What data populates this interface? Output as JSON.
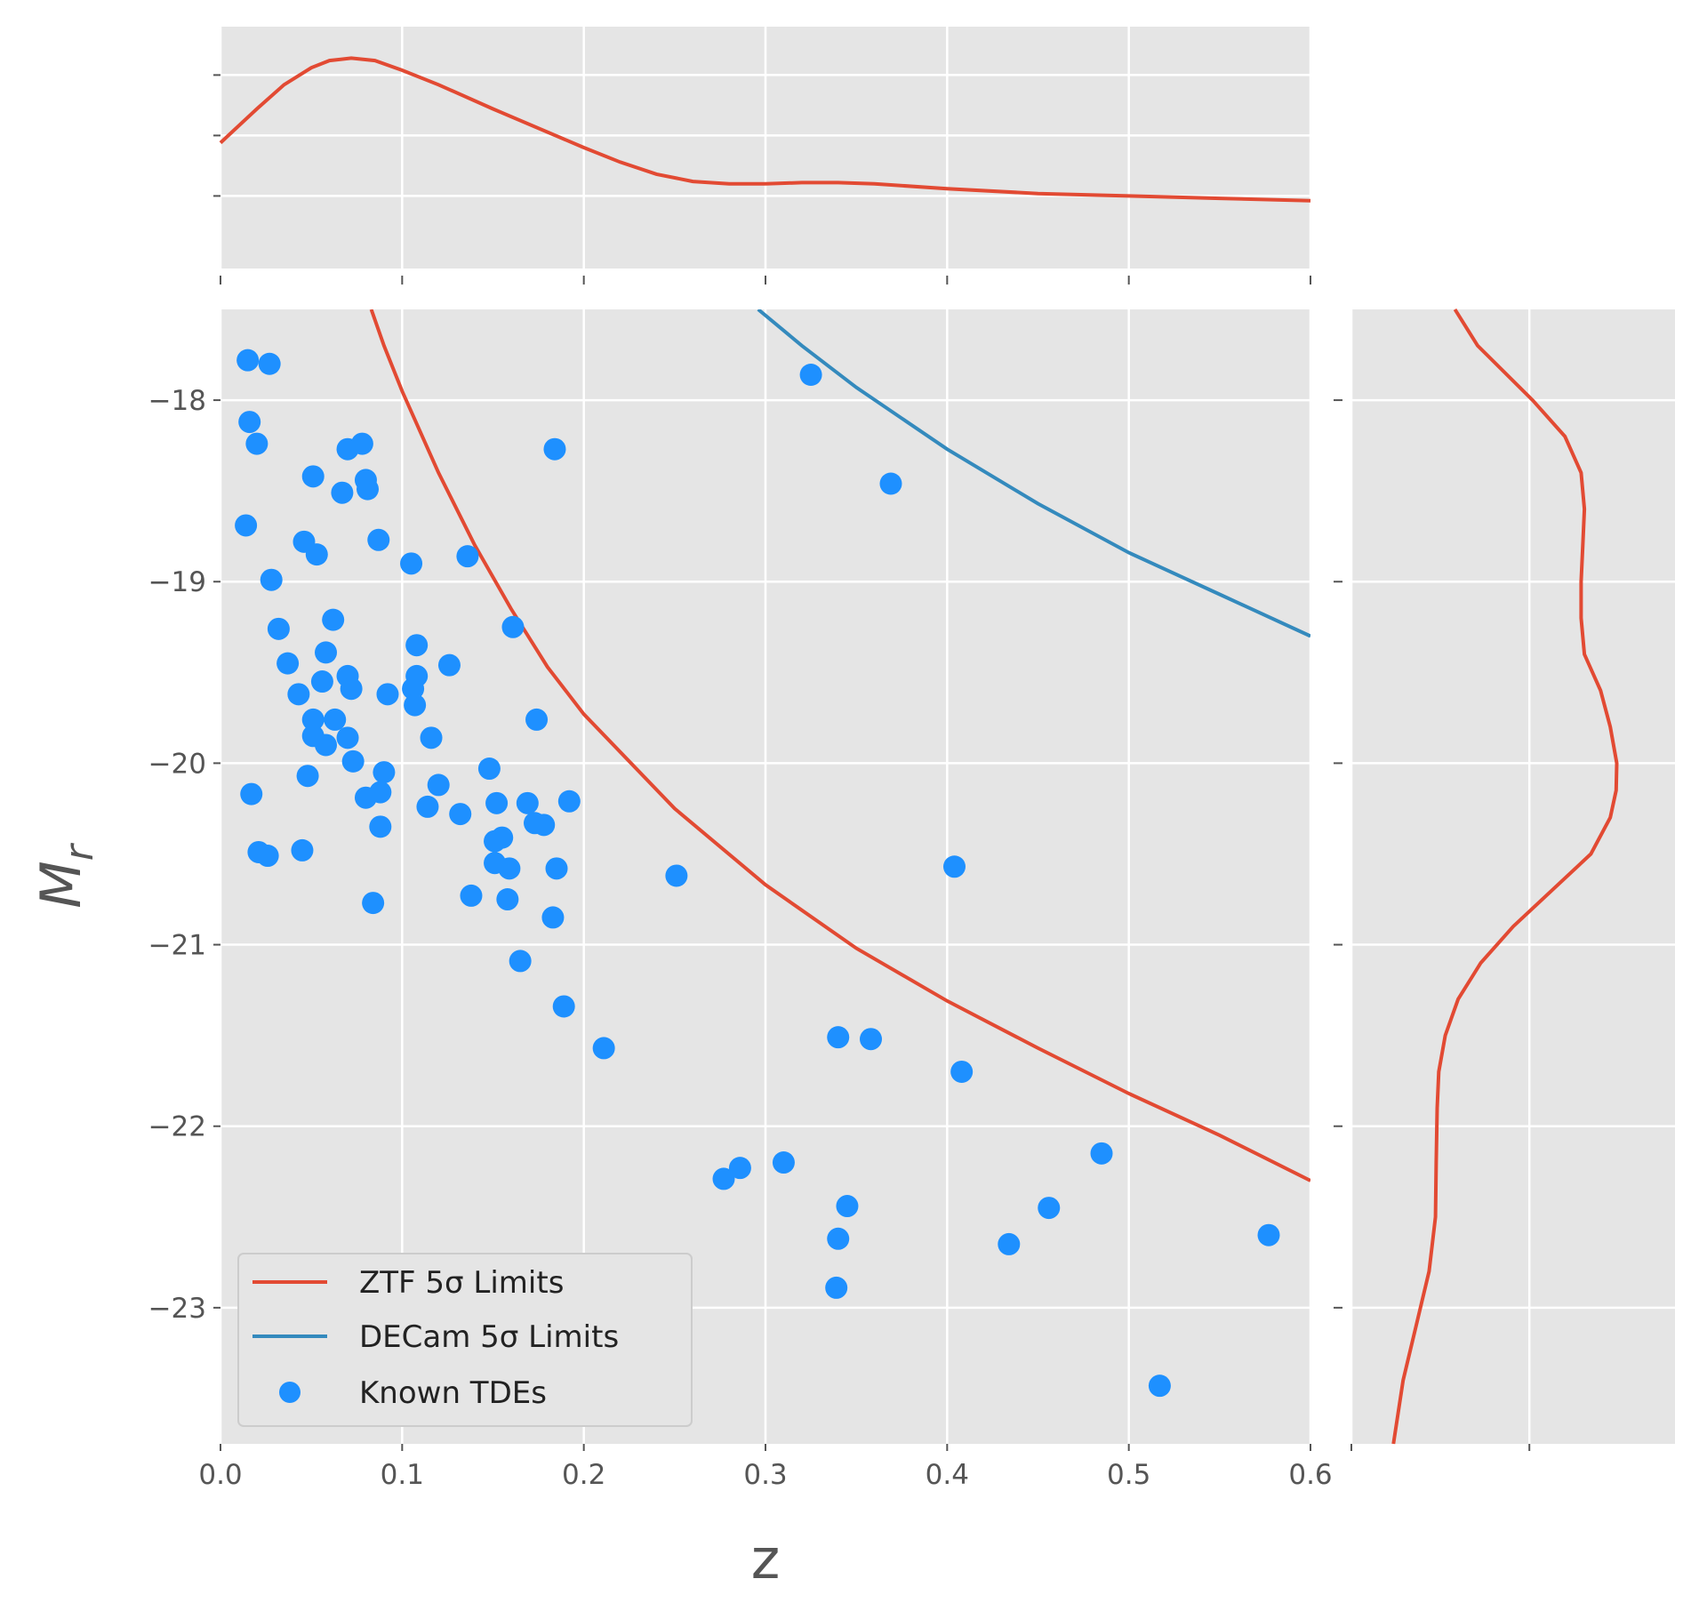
{
  "chart_data": {
    "type": "scatter",
    "xlabel": "z",
    "ylabel_base": "M",
    "ylabel_sub": "r",
    "xlim": [
      0.0,
      0.6
    ],
    "ylim": [
      -17.5,
      -23.75
    ],
    "y_inverted": true,
    "grid": true,
    "xticks": [
      0.0,
      0.1,
      0.2,
      0.3,
      0.4,
      0.5,
      0.6
    ],
    "xtick_labels": [
      "0.0",
      "0.1",
      "0.2",
      "0.3",
      "0.4",
      "0.5",
      "0.6"
    ],
    "yticks": [
      -18,
      -19,
      -20,
      -21,
      -22,
      -23
    ],
    "ytick_labels": [
      "−18",
      "−19",
      "−20",
      "−21",
      "−22",
      "−23"
    ],
    "legend": {
      "placement": "lower-left",
      "entries": [
        {
          "label": "ZTF 5σ Limits",
          "kind": "line",
          "color": "#E24A33"
        },
        {
          "label": "DECam 5σ Limits",
          "kind": "line",
          "color": "#348ABD"
        },
        {
          "label": "Known TDEs",
          "kind": "marker",
          "color": "#1E90FF"
        }
      ]
    },
    "series": [
      {
        "name": "ZTF 5σ Limits",
        "kind": "line",
        "color": "#E24A33",
        "points": [
          [
            0.083,
            -17.5
          ],
          [
            0.09,
            -17.7
          ],
          [
            0.1,
            -17.95
          ],
          [
            0.12,
            -18.4
          ],
          [
            0.14,
            -18.8
          ],
          [
            0.16,
            -19.15
          ],
          [
            0.18,
            -19.47
          ],
          [
            0.2,
            -19.73
          ],
          [
            0.25,
            -20.25
          ],
          [
            0.3,
            -20.67
          ],
          [
            0.35,
            -21.02
          ],
          [
            0.4,
            -21.31
          ],
          [
            0.45,
            -21.57
          ],
          [
            0.5,
            -21.82
          ],
          [
            0.55,
            -22.05
          ],
          [
            0.6,
            -22.3
          ]
        ]
      },
      {
        "name": "DECam 5σ Limits",
        "kind": "line",
        "color": "#348ABD",
        "points": [
          [
            0.296,
            -17.5
          ],
          [
            0.32,
            -17.7
          ],
          [
            0.35,
            -17.93
          ],
          [
            0.4,
            -18.27
          ],
          [
            0.45,
            -18.57
          ],
          [
            0.5,
            -18.84
          ],
          [
            0.55,
            -19.07
          ],
          [
            0.6,
            -19.3
          ]
        ]
      },
      {
        "name": "Known TDEs",
        "kind": "scatter",
        "color": "#1E90FF",
        "points": [
          [
            0.015,
            -17.78
          ],
          [
            0.027,
            -17.8
          ],
          [
            0.016,
            -18.12
          ],
          [
            0.02,
            -18.24
          ],
          [
            0.07,
            -18.27
          ],
          [
            0.078,
            -18.24
          ],
          [
            0.051,
            -18.42
          ],
          [
            0.08,
            -18.44
          ],
          [
            0.081,
            -18.49
          ],
          [
            0.067,
            -18.51
          ],
          [
            0.014,
            -18.69
          ],
          [
            0.046,
            -18.78
          ],
          [
            0.087,
            -18.77
          ],
          [
            0.053,
            -18.85
          ],
          [
            0.105,
            -18.9
          ],
          [
            0.136,
            -18.86
          ],
          [
            0.028,
            -18.99
          ],
          [
            0.062,
            -19.21
          ],
          [
            0.032,
            -19.26
          ],
          [
            0.161,
            -19.25
          ],
          [
            0.058,
            -19.39
          ],
          [
            0.108,
            -19.35
          ],
          [
            0.037,
            -19.45
          ],
          [
            0.126,
            -19.46
          ],
          [
            0.056,
            -19.55
          ],
          [
            0.07,
            -19.52
          ],
          [
            0.108,
            -19.52
          ],
          [
            0.072,
            -19.59
          ],
          [
            0.106,
            -19.59
          ],
          [
            0.043,
            -19.62
          ],
          [
            0.092,
            -19.62
          ],
          [
            0.107,
            -19.68
          ],
          [
            0.051,
            -19.76
          ],
          [
            0.063,
            -19.76
          ],
          [
            0.174,
            -19.76
          ],
          [
            0.051,
            -19.85
          ],
          [
            0.058,
            -19.9
          ],
          [
            0.07,
            -19.86
          ],
          [
            0.116,
            -19.86
          ],
          [
            0.073,
            -19.99
          ],
          [
            0.148,
            -20.03
          ],
          [
            0.09,
            -20.05
          ],
          [
            0.048,
            -20.07
          ],
          [
            0.12,
            -20.12
          ],
          [
            0.017,
            -20.17
          ],
          [
            0.088,
            -20.16
          ],
          [
            0.08,
            -20.19
          ],
          [
            0.152,
            -20.22
          ],
          [
            0.169,
            -20.22
          ],
          [
            0.192,
            -20.21
          ],
          [
            0.114,
            -20.24
          ],
          [
            0.132,
            -20.28
          ],
          [
            0.173,
            -20.33
          ],
          [
            0.178,
            -20.34
          ],
          [
            0.088,
            -20.35
          ],
          [
            0.155,
            -20.41
          ],
          [
            0.151,
            -20.43
          ],
          [
            0.045,
            -20.48
          ],
          [
            0.021,
            -20.49
          ],
          [
            0.026,
            -20.51
          ],
          [
            0.151,
            -20.55
          ],
          [
            0.159,
            -20.58
          ],
          [
            0.185,
            -20.58
          ],
          [
            0.251,
            -20.62
          ],
          [
            0.404,
            -20.57
          ],
          [
            0.138,
            -20.73
          ],
          [
            0.158,
            -20.75
          ],
          [
            0.084,
            -20.77
          ],
          [
            0.183,
            -20.85
          ],
          [
            0.165,
            -21.09
          ],
          [
            0.189,
            -21.34
          ],
          [
            0.211,
            -21.57
          ],
          [
            0.34,
            -21.51
          ],
          [
            0.358,
            -21.52
          ],
          [
            0.408,
            -21.7
          ],
          [
            0.485,
            -22.15
          ],
          [
            0.31,
            -22.2
          ],
          [
            0.286,
            -22.23
          ],
          [
            0.277,
            -22.29
          ],
          [
            0.345,
            -22.44
          ],
          [
            0.456,
            -22.45
          ],
          [
            0.577,
            -22.6
          ],
          [
            0.34,
            -22.62
          ],
          [
            0.434,
            -22.65
          ],
          [
            0.339,
            -22.89
          ],
          [
            0.517,
            -23.43
          ],
          [
            0.184,
            -18.27
          ],
          [
            0.325,
            -17.86
          ],
          [
            0.369,
            -18.46
          ]
        ]
      },
      {
        "name": "",
        "kind": "scatter-faded",
        "color": "#B8D3EE",
        "points": [
          [
            0.232,
            -23.34
          ]
        ]
      }
    ],
    "marginal_top": {
      "type": "line",
      "label": "",
      "color": "#E24A33",
      "x_density_points": [
        [
          0.0,
          0.52
        ],
        [
          0.02,
          0.66
        ],
        [
          0.035,
          0.76
        ],
        [
          0.05,
          0.83
        ],
        [
          0.06,
          0.86
        ],
        [
          0.072,
          0.87
        ],
        [
          0.085,
          0.86
        ],
        [
          0.1,
          0.82
        ],
        [
          0.12,
          0.76
        ],
        [
          0.15,
          0.66
        ],
        [
          0.2,
          0.5
        ],
        [
          0.22,
          0.44
        ],
        [
          0.24,
          0.39
        ],
        [
          0.26,
          0.36
        ],
        [
          0.28,
          0.35
        ],
        [
          0.3,
          0.35
        ],
        [
          0.32,
          0.355
        ],
        [
          0.34,
          0.355
        ],
        [
          0.36,
          0.35
        ],
        [
          0.4,
          0.33
        ],
        [
          0.45,
          0.31
        ],
        [
          0.5,
          0.3
        ],
        [
          0.55,
          0.29
        ],
        [
          0.6,
          0.28
        ]
      ]
    },
    "marginal_right": {
      "type": "line",
      "label": "",
      "color": "#E24A33",
      "y_density_points": [
        [
          -17.5,
          0.32
        ],
        [
          -17.7,
          0.39
        ],
        [
          -18.0,
          0.56
        ],
        [
          -18.2,
          0.66
        ],
        [
          -18.4,
          0.71
        ],
        [
          -18.6,
          0.72
        ],
        [
          -18.8,
          0.715
        ],
        [
          -19.0,
          0.71
        ],
        [
          -19.2,
          0.71
        ],
        [
          -19.4,
          0.72
        ],
        [
          -19.6,
          0.77
        ],
        [
          -19.8,
          0.8
        ],
        [
          -20.0,
          0.82
        ],
        [
          -20.15,
          0.818
        ],
        [
          -20.3,
          0.8
        ],
        [
          -20.5,
          0.74
        ],
        [
          -20.7,
          0.62
        ],
        [
          -20.9,
          0.5
        ],
        [
          -21.1,
          0.4
        ],
        [
          -21.3,
          0.33
        ],
        [
          -21.5,
          0.29
        ],
        [
          -21.7,
          0.27
        ],
        [
          -21.9,
          0.265
        ],
        [
          -22.2,
          0.262
        ],
        [
          -22.5,
          0.26
        ],
        [
          -22.8,
          0.24
        ],
        [
          -23.1,
          0.2
        ],
        [
          -23.4,
          0.16
        ],
        [
          -23.75,
          0.13
        ]
      ]
    }
  }
}
